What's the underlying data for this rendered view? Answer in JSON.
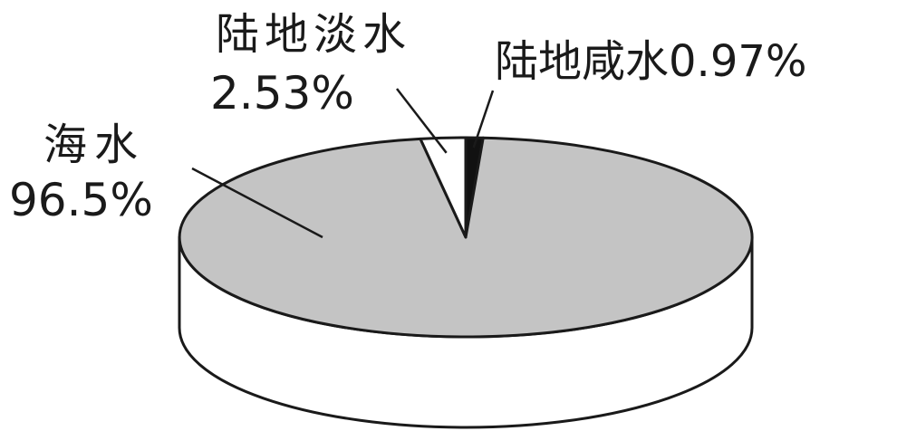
{
  "chart_data": {
    "type": "pie",
    "style": "3d",
    "categories": [
      "海水",
      "陆地淡水",
      "陆地咸水"
    ],
    "values": [
      96.5,
      2.53,
      0.97
    ],
    "value_labels": [
      "96.5%",
      "2.53%",
      "0.97%"
    ],
    "colors": [
      "#c4c4c4",
      "#ffffff",
      "#111111"
    ],
    "side_color": "#ffffff",
    "outline_color": "#1a1a1a",
    "legend": "none",
    "grid": false
  }
}
